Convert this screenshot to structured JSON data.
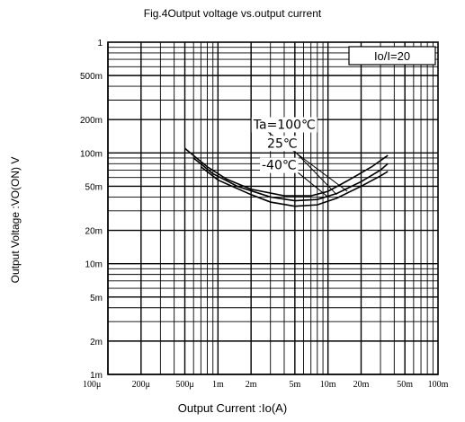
{
  "chart_data": {
    "type": "line",
    "title": "Fig.4Output voltage vs.output current",
    "xlabel": "Output  Current :Io(A)",
    "ylabel": "Output Voltage :VO(ON) V",
    "xscale": "log",
    "yscale": "log",
    "xlim": [
      0.0001,
      0.1
    ],
    "ylim": [
      0.001,
      1
    ],
    "grid": true,
    "x_tick_values": [
      0.0001,
      0.0002,
      0.0005,
      0.001,
      0.002,
      0.005,
      0.01,
      0.02,
      0.05,
      0.1
    ],
    "x_tick_labels": [
      "100μ",
      "200μ",
      "500μ",
      "1m",
      "2m",
      "5m",
      "10m",
      "20m",
      "50m",
      "100m"
    ],
    "y_tick_values": [
      0.001,
      0.002,
      0.005,
      0.01,
      0.02,
      0.05,
      0.1,
      0.2,
      0.5,
      1
    ],
    "y_tick_labels": [
      "1m",
      "2m",
      "5m",
      "10m",
      "20m",
      "50m",
      "100m",
      "200m",
      "500m",
      "1"
    ],
    "legend_box": "Io/I=20",
    "series": [
      {
        "name": "Ta=100℃",
        "x": [
          0.0005,
          0.0008,
          0.0012,
          0.002,
          0.004,
          0.007,
          0.01,
          0.015,
          0.025,
          0.035
        ],
        "y": [
          0.11,
          0.075,
          0.058,
          0.047,
          0.041,
          0.041,
          0.045,
          0.056,
          0.075,
          0.095
        ]
      },
      {
        "name": "25℃",
        "x": [
          0.0006,
          0.0009,
          0.0015,
          0.003,
          0.005,
          0.008,
          0.012,
          0.02,
          0.03,
          0.035
        ],
        "y": [
          0.09,
          0.065,
          0.05,
          0.04,
          0.037,
          0.038,
          0.043,
          0.055,
          0.07,
          0.08
        ]
      },
      {
        "name": "-40℃",
        "x": [
          0.0007,
          0.001,
          0.002,
          0.003,
          0.005,
          0.008,
          0.012,
          0.02,
          0.03,
          0.035
        ],
        "y": [
          0.075,
          0.057,
          0.042,
          0.036,
          0.033,
          0.034,
          0.039,
          0.05,
          0.062,
          0.068
        ]
      }
    ],
    "pointer_lines": [
      {
        "x": [
          0.0025,
          0.015
        ],
        "y": [
          0.17,
          0.045
        ]
      },
      {
        "x": [
          0.0045,
          0.012
        ],
        "y": [
          0.115,
          0.042
        ]
      },
      {
        "x": [
          0.005,
          0.01
        ],
        "y": [
          0.07,
          0.04
        ]
      }
    ]
  },
  "colors": {
    "line": "#000000",
    "grid": "#000000",
    "background": "#ffffff"
  }
}
